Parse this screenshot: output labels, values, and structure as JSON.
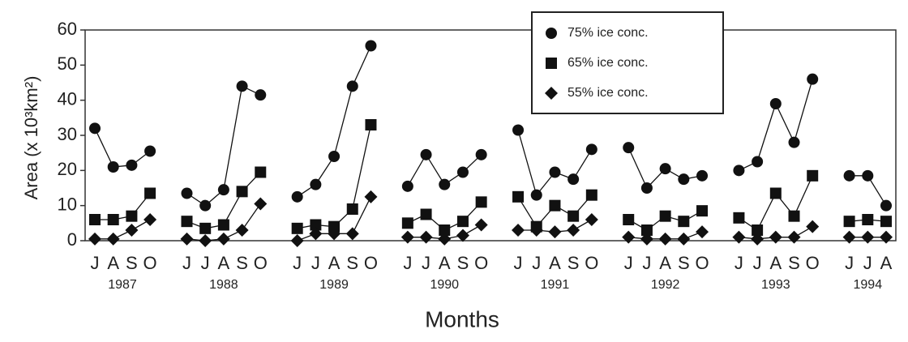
{
  "chart_data": {
    "type": "line",
    "y_label": "Area (x 10³km²)",
    "x_label": "Months",
    "categories": [
      "J",
      "A",
      "S",
      "O",
      null,
      "J",
      "J",
      "A",
      "S",
      "O",
      null,
      "J",
      "J",
      "A",
      "S",
      "O",
      null,
      "J",
      "J",
      "A",
      "S",
      "O",
      null,
      "J",
      "J",
      "A",
      "S",
      "O",
      null,
      "J",
      "J",
      "A",
      "S",
      "O",
      null,
      "J",
      "J",
      "A",
      "S",
      "O",
      null,
      "J",
      "J",
      "A"
    ],
    "year_labels": [
      "1987",
      "1988",
      "1989",
      "1990",
      "1991",
      "1992",
      "1993",
      "1994"
    ],
    "series": [
      {
        "name": "75% ice conc.",
        "color": "#111111",
        "marker": "circle",
        "values": [
          32,
          21,
          21.5,
          25.5,
          null,
          13.5,
          10,
          14.5,
          44,
          41.5,
          null,
          12.5,
          16,
          24,
          44,
          55.5,
          null,
          15.5,
          24.5,
          16,
          19.5,
          24.5,
          null,
          31.5,
          13,
          19.5,
          17.5,
          26,
          null,
          26.5,
          15,
          20.5,
          17.5,
          18.5,
          null,
          20,
          22.5,
          39,
          28,
          46,
          null,
          18.5,
          18.5,
          10
        ]
      },
      {
        "name": "65% ice conc.",
        "color": "#111111",
        "marker": "square",
        "values": [
          6,
          6,
          7,
          13.5,
          null,
          5.5,
          3.5,
          4.5,
          14,
          19.5,
          null,
          3.5,
          4.5,
          4,
          9,
          33,
          null,
          5,
          7.5,
          3,
          5.5,
          11,
          null,
          12.5,
          4,
          10,
          7,
          13,
          null,
          6,
          3,
          7,
          5.5,
          8.5,
          null,
          6.5,
          3,
          13.5,
          7,
          18.5,
          null,
          5.5,
          6,
          5.5
        ]
      },
      {
        "name": "55% ice conc.",
        "color": "#111111",
        "marker": "diamond",
        "values": [
          0.5,
          0.5,
          3,
          6,
          null,
          0.5,
          0,
          0.5,
          3,
          10.5,
          null,
          0,
          2,
          2,
          2,
          12.5,
          null,
          1,
          1,
          0.5,
          1.5,
          4.5,
          null,
          3,
          3,
          2.5,
          3,
          6,
          null,
          1,
          0.5,
          0.5,
          0.5,
          2.5,
          null,
          1,
          0.5,
          1,
          1,
          4,
          null,
          1,
          1,
          1
        ]
      }
    ],
    "ylim": [
      0,
      60
    ],
    "yticks": [
      0,
      10,
      20,
      30,
      40,
      50,
      60
    ],
    "legend": "top-right"
  }
}
